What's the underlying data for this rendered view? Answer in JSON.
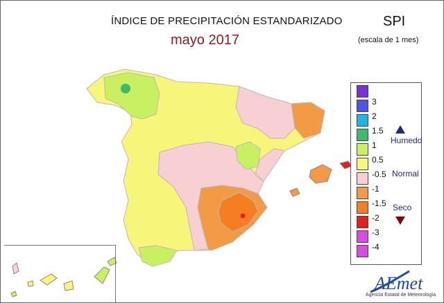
{
  "header": {
    "title": "ÍNDICE DE PRECIPITACIÓN ESTANDARIZADO",
    "subtitle": "mayo 2017",
    "index_name": "SPI",
    "scale": "(escala de 1 mes)"
  },
  "legend": {
    "items": [
      {
        "label": "",
        "color": "#7b2fd6"
      },
      {
        "label": "3",
        "color": "#4b55e8"
      },
      {
        "label": "2",
        "color": "#1fb5e8"
      },
      {
        "label": "1.5",
        "color": "#3dbb6a"
      },
      {
        "label": "1",
        "color": "#c8f060"
      },
      {
        "label": "0.5",
        "color": "#f7f57a"
      },
      {
        "label": "-0.5",
        "color": "#f8cfd2"
      },
      {
        "label": "-1",
        "color": "#f39a45"
      },
      {
        "label": "-1.5",
        "color": "#f57f20"
      },
      {
        "label": "-2",
        "color": "#e31f1f"
      },
      {
        "label": "-3",
        "color": "#d64ce3"
      },
      {
        "label": "-4",
        "color": "#ffffff"
      }
    ],
    "categories": {
      "wet": "Humedo",
      "normal": "Normal",
      "dry": "Seco"
    }
  },
  "logo": {
    "name": "AEmet",
    "tagline": "Agencia Estatal de Meteorología"
  },
  "colors": {
    "brand_blue": "#1f4aa0",
    "title_red": "#8b1a1a",
    "category_blue": "#1f2a7a"
  }
}
